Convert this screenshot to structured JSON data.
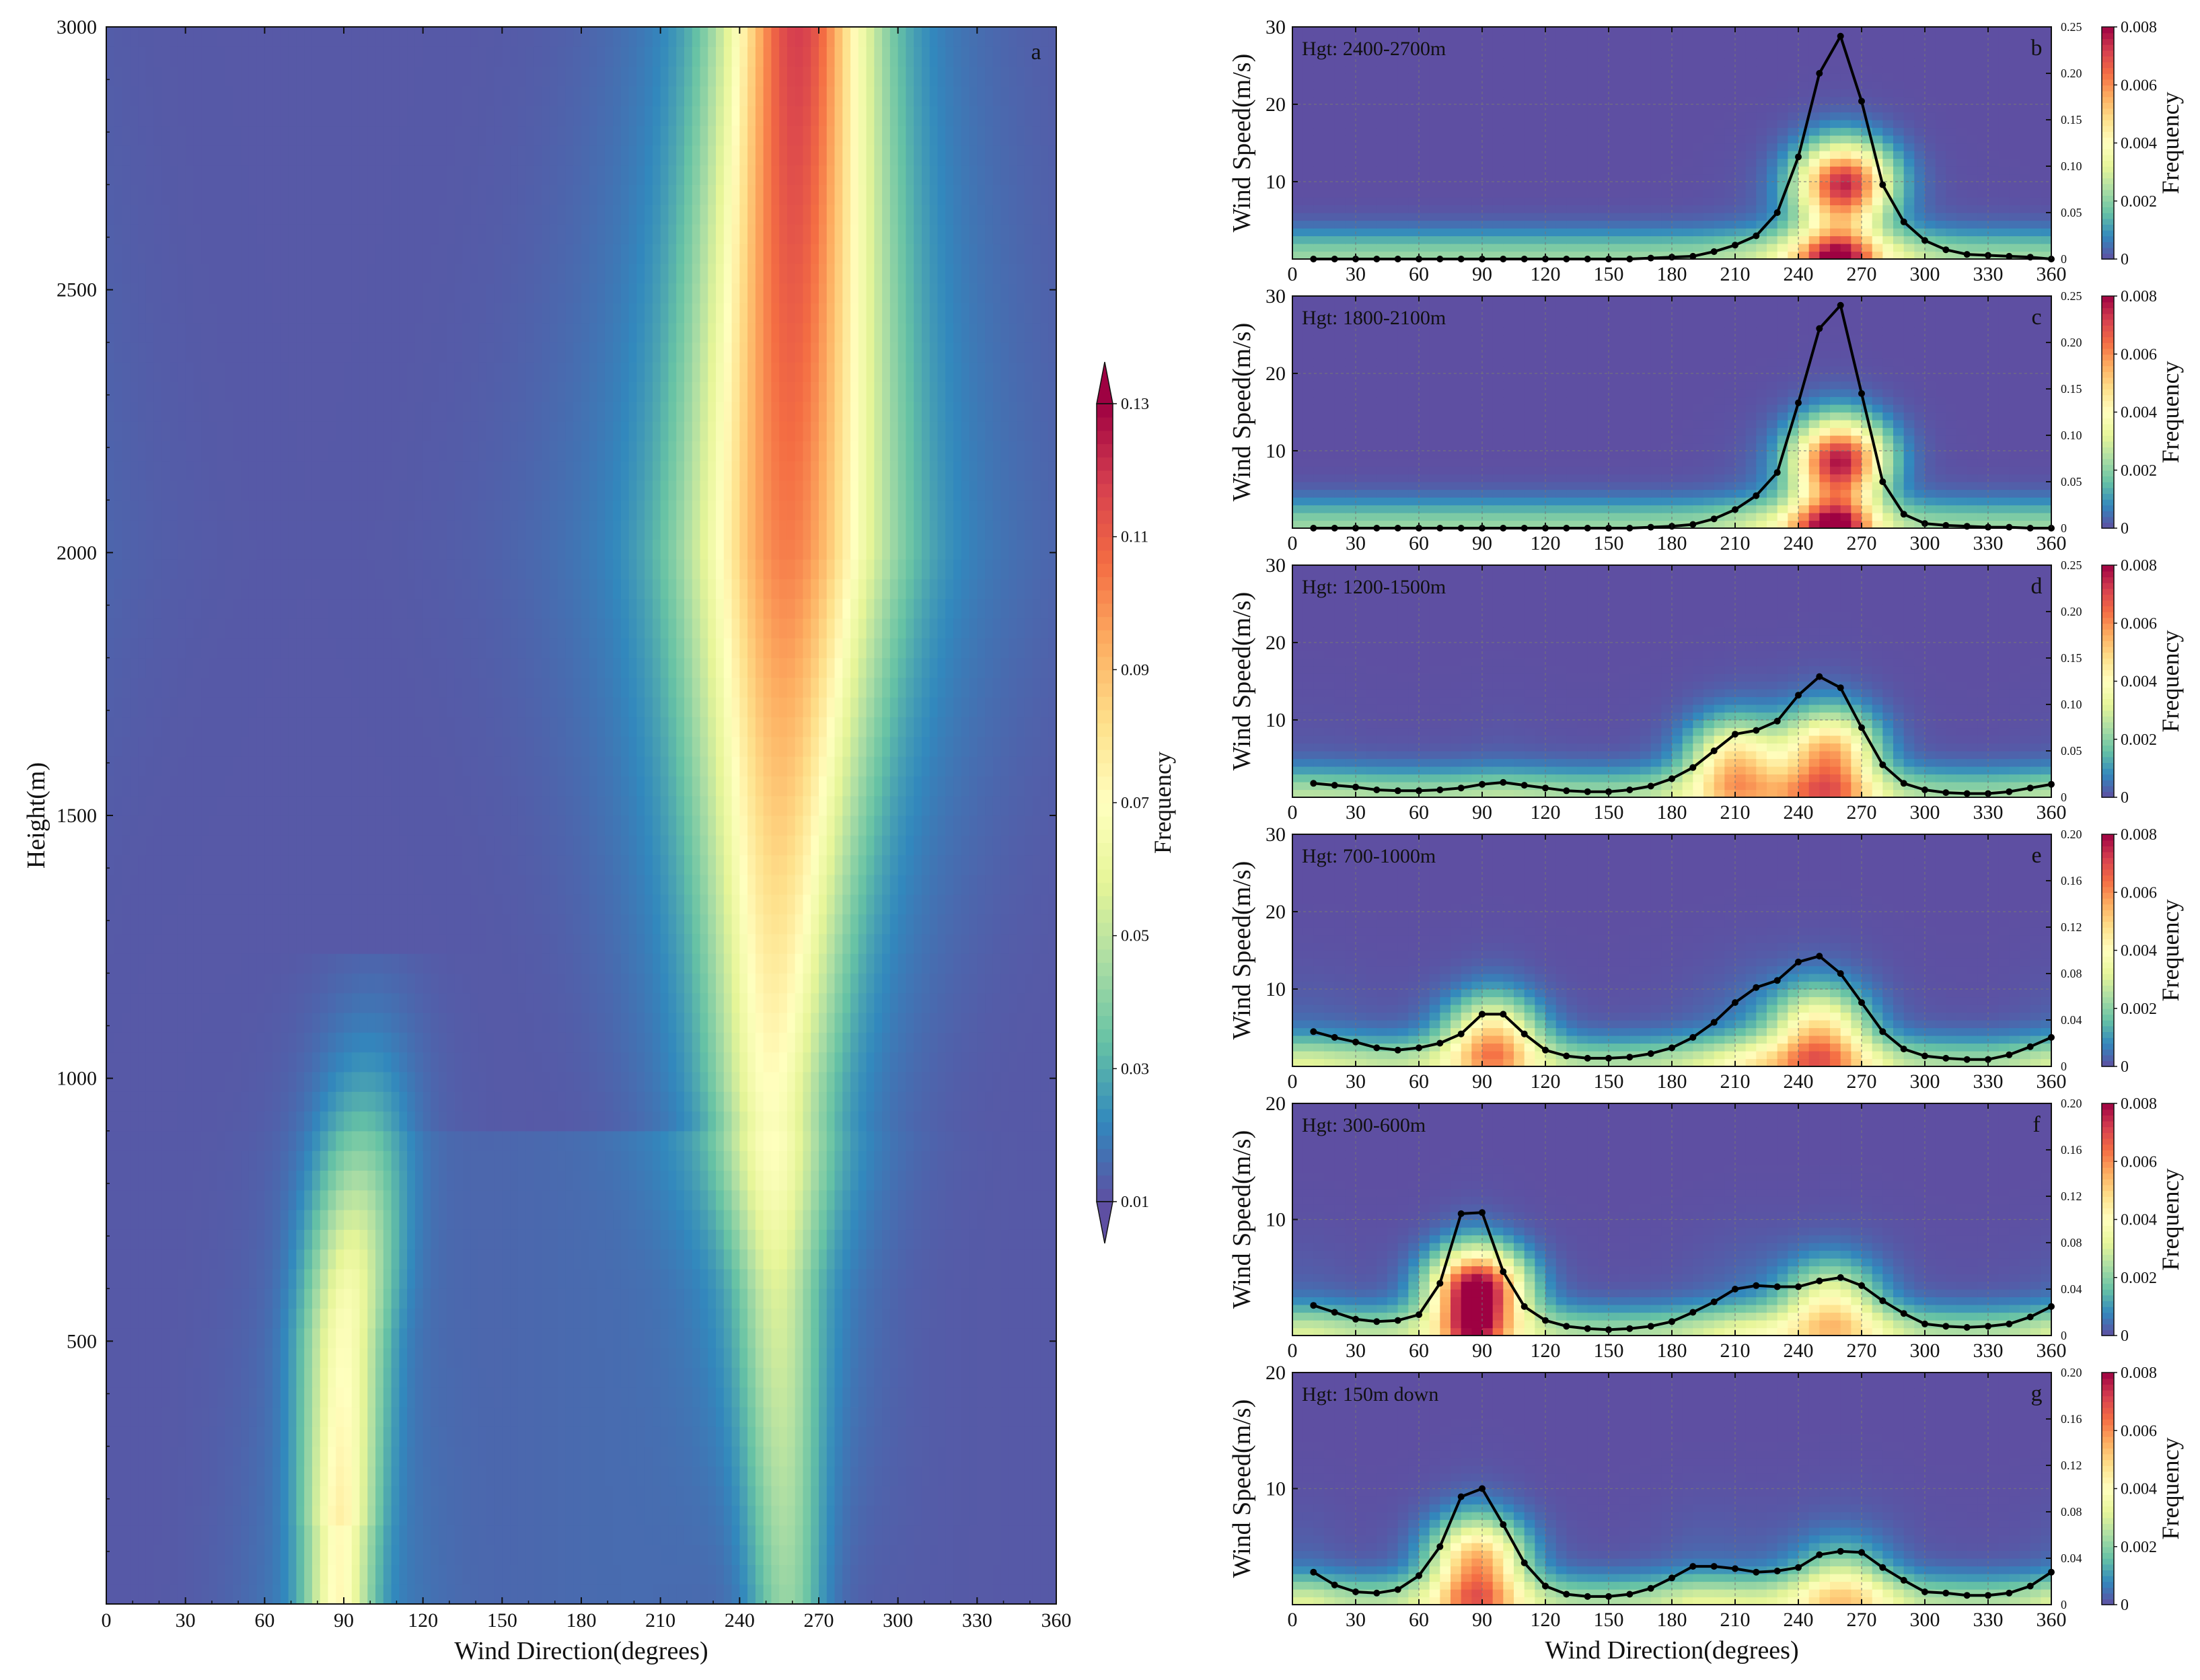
{
  "figure": {
    "panels": [
      {
        "id": "a",
        "letter": "a",
        "title": "",
        "xlabel": "Wind Direction(degrees)",
        "ylabel": "Height(m)",
        "xticks": [
          "0",
          "30",
          "60",
          "90",
          "120",
          "150",
          "180",
          "210",
          "240",
          "270",
          "300",
          "330",
          "360"
        ],
        "yticks": [
          "500",
          "1000",
          "1500",
          "2000",
          "2500",
          "3000"
        ],
        "colorbar": {
          "label": "Frequency",
          "ticks": [
            "0.01",
            "0.03",
            "0.05",
            "0.07",
            "0.09",
            "0.11",
            "0.13"
          ],
          "range": [
            0.01,
            0.13
          ],
          "extend": "both"
        }
      },
      {
        "id": "b",
        "letter": "b",
        "title": "Hgt: 2400-2700m",
        "xlabel": "",
        "ylabel": "Wind Speed(m/s)",
        "xticks": [
          "0",
          "30",
          "60",
          "90",
          "120",
          "150",
          "180",
          "210",
          "240",
          "270",
          "300",
          "330",
          "360"
        ],
        "yticks": [
          "10",
          "20",
          "30"
        ],
        "ylim": [
          0,
          30
        ],
        "right_ticks": [
          "0.05",
          "0.10",
          "0.15",
          "0.20",
          "0.25"
        ],
        "right_range": [
          0,
          0.25
        ],
        "colorbar": {
          "label": "Frequency",
          "ticks": [
            "0",
            "0.002",
            "0.004",
            "0.006",
            "0.008"
          ],
          "range": [
            0,
            0.008
          ]
        }
      },
      {
        "id": "c",
        "letter": "c",
        "title": "Hgt: 1800-2100m",
        "xlabel": "",
        "ylabel": "Wind Speed(m/s)",
        "xticks": [
          "0",
          "30",
          "60",
          "90",
          "120",
          "150",
          "180",
          "210",
          "240",
          "270",
          "300",
          "330",
          "360"
        ],
        "yticks": [
          "10",
          "20",
          "30"
        ],
        "ylim": [
          0,
          30
        ],
        "right_ticks": [
          "0.05",
          "0.10",
          "0.15",
          "0.20",
          "0.25"
        ],
        "right_range": [
          0,
          0.25
        ],
        "colorbar": {
          "label": "Frequency",
          "ticks": [
            "0",
            "0.002",
            "0.004",
            "0.006",
            "0.008"
          ],
          "range": [
            0,
            0.008
          ]
        }
      },
      {
        "id": "d",
        "letter": "d",
        "title": "Hgt: 1200-1500m",
        "xlabel": "",
        "ylabel": "Wind Speed(m/s)",
        "xticks": [
          "0",
          "30",
          "60",
          "90",
          "120",
          "150",
          "180",
          "210",
          "240",
          "270",
          "300",
          "330",
          "360"
        ],
        "yticks": [
          "10",
          "20",
          "30"
        ],
        "ylim": [
          0,
          30
        ],
        "right_ticks": [
          "0.05",
          "0.10",
          "0.15",
          "0.20",
          "0.25"
        ],
        "right_range": [
          0,
          0.25
        ],
        "colorbar": {
          "label": "Frequency",
          "ticks": [
            "0",
            "0.002",
            "0.004",
            "0.006",
            "0.008"
          ],
          "range": [
            0,
            0.008
          ]
        }
      },
      {
        "id": "e",
        "letter": "e",
        "title": "Hgt: 700-1000m",
        "xlabel": "",
        "ylabel": "Wind Speed(m/s)",
        "xticks": [
          "0",
          "30",
          "60",
          "90",
          "120",
          "150",
          "180",
          "210",
          "240",
          "270",
          "300",
          "330",
          "360"
        ],
        "yticks": [
          "10",
          "20",
          "30"
        ],
        "ylim": [
          0,
          30
        ],
        "right_ticks": [
          "0.04",
          "0.08",
          "0.12",
          "0.16",
          "0.20"
        ],
        "right_range": [
          0,
          0.2
        ],
        "colorbar": {
          "label": "Frequency",
          "ticks": [
            "0",
            "0.002",
            "0.004",
            "0.006",
            "0.008"
          ],
          "range": [
            0,
            0.008
          ]
        }
      },
      {
        "id": "f",
        "letter": "f",
        "title": "Hgt: 300-600m",
        "xlabel": "",
        "ylabel": "Wind Speed(m/s)",
        "xticks": [
          "0",
          "30",
          "60",
          "90",
          "120",
          "150",
          "180",
          "210",
          "240",
          "270",
          "300",
          "330",
          "360"
        ],
        "yticks": [
          "10",
          "20"
        ],
        "ylim": [
          0,
          20
        ],
        "right_ticks": [
          "0.04",
          "0.08",
          "0.12",
          "0.16",
          "0.20"
        ],
        "right_range": [
          0,
          0.2
        ],
        "colorbar": {
          "label": "Frequency",
          "ticks": [
            "0",
            "0.002",
            "0.004",
            "0.006",
            "0.008"
          ],
          "range": [
            0,
            0.008
          ]
        }
      },
      {
        "id": "g",
        "letter": "g",
        "title": "Hgt: 150m down",
        "xlabel": "Wind Direction(degrees)",
        "ylabel": "Wind Speed(m/s)",
        "xticks": [
          "0",
          "30",
          "60",
          "90",
          "120",
          "150",
          "180",
          "210",
          "240",
          "270",
          "300",
          "330",
          "360"
        ],
        "yticks": [
          "10",
          "20"
        ],
        "ylim": [
          0,
          20
        ],
        "right_ticks": [
          "0.04",
          "0.08",
          "0.12",
          "0.16",
          "0.20"
        ],
        "right_range": [
          0,
          0.2
        ],
        "colorbar": {
          "label": "Frequency",
          "ticks": [
            "0",
            "0.002",
            "0.004",
            "0.006",
            "0.008"
          ],
          "range": [
            0,
            0.008
          ]
        }
      }
    ]
  },
  "chart_data": [
    {
      "type": "heatmap",
      "panel": "a",
      "xlabel": "Wind Direction(degrees)",
      "ylabel": "Height(m)",
      "xlim": [
        0,
        360
      ],
      "ylim": [
        0,
        3000
      ],
      "colorbar_label": "Frequency",
      "color_range": [
        0.01,
        0.13
      ],
      "colormap": [
        "#5e4fa2",
        "#3288bd",
        "#66c2a5",
        "#abdda4",
        "#e6f598",
        "#ffffbf",
        "#fee08b",
        "#fdae61",
        "#f46d43",
        "#d53e4f",
        "#9e0142"
      ],
      "bands": [
        {
          "name": "",
          "center_by_height": [
            [
              0,
              88
            ],
            [
              500,
              90
            ],
            [
              800,
              95
            ],
            [
              1000,
              98
            ],
            [
              1200,
              100
            ]
          ],
          "peak_frequency": 0.06,
          "height_range": [
            0,
            1250
          ]
        },
        {
          "name": "",
          "center_by_height": [
            [
              0,
              258
            ],
            [
              500,
              255
            ],
            [
              1000,
              252
            ],
            [
              1500,
              255
            ],
            [
              2000,
              258
            ],
            [
              2500,
              260
            ],
            [
              3000,
              262
            ]
          ],
          "peak_frequency": 0.095,
          "height_range": [
            0,
            3000
          ]
        }
      ]
    },
    {
      "type": "heatmap+line",
      "panel": "b",
      "title": "Hgt: 2400-2700m",
      "xlim": [
        0,
        360
      ],
      "ylim": [
        0,
        30
      ],
      "right_ylim": [
        0,
        0.25
      ],
      "color_range": [
        0,
        0.008
      ],
      "density_peaks": [
        {
          "x": 262,
          "y": 10,
          "peak": 0.0065
        }
      ],
      "line": {
        "x": [
          10,
          20,
          30,
          40,
          50,
          60,
          70,
          80,
          90,
          100,
          110,
          120,
          130,
          140,
          150,
          160,
          170,
          180,
          190,
          200,
          210,
          220,
          230,
          240,
          250,
          260,
          270,
          280,
          290,
          300,
          310,
          320,
          330,
          340,
          350,
          360
        ],
        "y": [
          0,
          0,
          0,
          0,
          0,
          0,
          0,
          0,
          0,
          0,
          0,
          0,
          0,
          0,
          0,
          0,
          0.001,
          0.002,
          0.003,
          0.008,
          0.015,
          0.025,
          0.05,
          0.11,
          0.2,
          0.24,
          0.17,
          0.08,
          0.04,
          0.02,
          0.01,
          0.005,
          0.004,
          0.003,
          0.002,
          0
        ]
      }
    },
    {
      "type": "heatmap+line",
      "panel": "c",
      "title": "Hgt: 1800-2100m",
      "xlim": [
        0,
        360
      ],
      "ylim": [
        0,
        30
      ],
      "right_ylim": [
        0,
        0.25
      ],
      "color_range": [
        0,
        0.008
      ],
      "density_peaks": [
        {
          "x": 260,
          "y": 9,
          "peak": 0.0065
        }
      ],
      "line": {
        "x": [
          10,
          20,
          30,
          40,
          50,
          60,
          70,
          80,
          90,
          100,
          110,
          120,
          130,
          140,
          150,
          160,
          170,
          180,
          190,
          200,
          210,
          220,
          230,
          240,
          250,
          260,
          270,
          280,
          290,
          300,
          310,
          320,
          330,
          340,
          350,
          360
        ],
        "y": [
          0,
          0,
          0,
          0,
          0,
          0,
          0,
          0,
          0,
          0,
          0,
          0,
          0,
          0,
          0,
          0,
          0.001,
          0.002,
          0.004,
          0.01,
          0.02,
          0.035,
          0.06,
          0.135,
          0.215,
          0.24,
          0.145,
          0.05,
          0.015,
          0.005,
          0.003,
          0.002,
          0.001,
          0.001,
          0,
          0
        ]
      }
    },
    {
      "type": "heatmap+line",
      "panel": "d",
      "title": "Hgt: 1200-1500m",
      "xlim": [
        0,
        360
      ],
      "ylim": [
        0,
        30
      ],
      "right_ylim": [
        0,
        0.25
      ],
      "color_range": [
        0,
        0.008
      ],
      "density_peaks": [
        {
          "x": 210,
          "y": 5,
          "peak": 0.004
        },
        {
          "x": 255,
          "y": 6,
          "peak": 0.0045
        }
      ],
      "line": {
        "x": [
          10,
          20,
          30,
          40,
          50,
          60,
          70,
          80,
          90,
          100,
          110,
          120,
          130,
          140,
          150,
          160,
          170,
          180,
          190,
          200,
          210,
          220,
          230,
          240,
          250,
          260,
          270,
          280,
          290,
          300,
          310,
          320,
          330,
          340,
          350,
          360
        ],
        "y": [
          0.015,
          0.013,
          0.011,
          0.008,
          0.007,
          0.007,
          0.008,
          0.01,
          0.014,
          0.016,
          0.013,
          0.01,
          0.007,
          0.006,
          0.006,
          0.008,
          0.012,
          0.02,
          0.032,
          0.05,
          0.068,
          0.072,
          0.082,
          0.11,
          0.13,
          0.118,
          0.075,
          0.035,
          0.015,
          0.008,
          0.005,
          0.004,
          0.004,
          0.006,
          0.01,
          0.014
        ]
      }
    },
    {
      "type": "heatmap+line",
      "panel": "e",
      "title": "Hgt: 700-1000m",
      "xlim": [
        0,
        360
      ],
      "ylim": [
        0,
        30
      ],
      "right_ylim": [
        0,
        0.2
      ],
      "color_range": [
        0,
        0.008
      ],
      "density_peaks": [
        {
          "x": 95,
          "y": 4,
          "peak": 0.004
        },
        {
          "x": 250,
          "y": 5,
          "peak": 0.0035
        }
      ],
      "line": {
        "x": [
          10,
          20,
          30,
          40,
          50,
          60,
          70,
          80,
          90,
          100,
          110,
          120,
          130,
          140,
          150,
          160,
          170,
          180,
          190,
          200,
          210,
          220,
          230,
          240,
          250,
          260,
          270,
          280,
          290,
          300,
          310,
          320,
          330,
          340,
          350,
          360
        ],
        "y": [
          0.03,
          0.025,
          0.021,
          0.016,
          0.014,
          0.016,
          0.02,
          0.028,
          0.045,
          0.045,
          0.028,
          0.014,
          0.009,
          0.007,
          0.007,
          0.008,
          0.011,
          0.016,
          0.025,
          0.038,
          0.055,
          0.068,
          0.074,
          0.09,
          0.095,
          0.08,
          0.055,
          0.03,
          0.015,
          0.009,
          0.007,
          0.006,
          0.006,
          0.01,
          0.017,
          0.025
        ]
      }
    },
    {
      "type": "heatmap+line",
      "panel": "f",
      "title": "Hgt: 300-600m",
      "xlim": [
        0,
        360
      ],
      "ylim": [
        0,
        20
      ],
      "right_ylim": [
        0,
        0.2
      ],
      "color_range": [
        0,
        0.008
      ],
      "density_peaks": [
        {
          "x": 88,
          "y": 4,
          "peak": 0.0075
        },
        {
          "x": 255,
          "y": 3,
          "peak": 0.003
        }
      ],
      "line": {
        "x": [
          10,
          20,
          30,
          40,
          50,
          60,
          70,
          80,
          90,
          100,
          110,
          120,
          130,
          140,
          150,
          160,
          170,
          180,
          190,
          200,
          210,
          220,
          230,
          240,
          250,
          260,
          270,
          280,
          290,
          300,
          310,
          320,
          330,
          340,
          350,
          360
        ],
        "y": [
          0.026,
          0.02,
          0.014,
          0.012,
          0.013,
          0.018,
          0.045,
          0.105,
          0.106,
          0.055,
          0.025,
          0.013,
          0.008,
          0.006,
          0.005,
          0.006,
          0.008,
          0.012,
          0.02,
          0.029,
          0.04,
          0.043,
          0.042,
          0.042,
          0.047,
          0.05,
          0.043,
          0.03,
          0.019,
          0.01,
          0.008,
          0.007,
          0.008,
          0.01,
          0.016,
          0.025
        ]
      }
    },
    {
      "type": "heatmap+line",
      "panel": "g",
      "title": "Hgt: 150m down",
      "xlim": [
        0,
        360
      ],
      "ylim": [
        0,
        20
      ],
      "right_ylim": [
        0,
        0.2
      ],
      "color_range": [
        0,
        0.008
      ],
      "density_peaks": [
        {
          "x": 88,
          "y": 4,
          "peak": 0.0045
        },
        {
          "x": 260,
          "y": 2,
          "peak": 0.002
        }
      ],
      "line": {
        "x": [
          10,
          20,
          30,
          40,
          50,
          60,
          70,
          80,
          90,
          100,
          110,
          120,
          130,
          140,
          150,
          160,
          170,
          180,
          190,
          200,
          210,
          220,
          230,
          240,
          250,
          260,
          270,
          280,
          290,
          300,
          310,
          320,
          330,
          340,
          350,
          360
        ],
        "y": [
          0.028,
          0.017,
          0.011,
          0.01,
          0.013,
          0.025,
          0.05,
          0.093,
          0.1,
          0.069,
          0.036,
          0.016,
          0.009,
          0.007,
          0.007,
          0.009,
          0.014,
          0.023,
          0.033,
          0.033,
          0.031,
          0.028,
          0.029,
          0.032,
          0.043,
          0.046,
          0.045,
          0.032,
          0.021,
          0.011,
          0.01,
          0.008,
          0.008,
          0.01,
          0.016,
          0.028
        ]
      }
    }
  ]
}
